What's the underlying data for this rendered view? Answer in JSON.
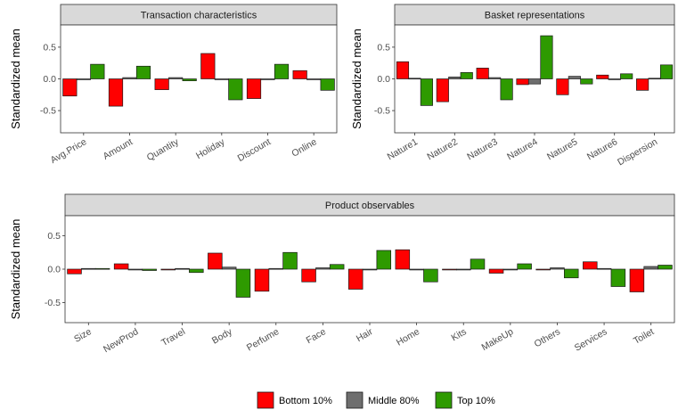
{
  "legend": {
    "items": [
      {
        "label": "Bottom 10%",
        "color": "#ff0000"
      },
      {
        "label": "Middle 80%",
        "color": "#6e6e6e"
      },
      {
        "label": "Top 10%",
        "color": "#2e9a00"
      }
    ]
  },
  "chart_data": [
    {
      "type": "bar",
      "title": "Transaction characteristics",
      "ylabel": "Standardized mean",
      "ylim": [
        -0.85,
        0.85
      ],
      "yticks": [
        -0.5,
        0.0,
        0.5
      ],
      "ytick_labels": [
        "-0.5",
        "0.0",
        "0.5"
      ],
      "categories": [
        "Avg.Price",
        "Amount",
        "Quantity",
        "Holiday",
        "Discount",
        "Online"
      ],
      "series": [
        {
          "name": "Bottom 10%",
          "values": [
            -0.27,
            -0.43,
            -0.17,
            0.4,
            -0.31,
            0.13
          ]
        },
        {
          "name": "Middle 80%",
          "values": [
            0.0,
            0.02,
            0.02,
            0.0,
            0.0,
            0.0
          ]
        },
        {
          "name": "Top 10%",
          "values": [
            0.23,
            0.2,
            -0.03,
            -0.33,
            0.23,
            -0.18
          ]
        }
      ]
    },
    {
      "type": "bar",
      "title": "Basket representations",
      "ylabel": "Standardized mean",
      "ylim": [
        -0.85,
        0.85
      ],
      "yticks": [
        -0.5,
        0.0,
        0.5
      ],
      "ytick_labels": [
        "-0.5",
        "0.0",
        "0.5"
      ],
      "categories": [
        "Nature1",
        "Nature2",
        "Nature3",
        "Nature4",
        "Nature5",
        "Nature6",
        "Dispersion"
      ],
      "series": [
        {
          "name": "Bottom 10%",
          "values": [
            0.27,
            -0.36,
            0.17,
            -0.09,
            -0.25,
            0.06,
            -0.18
          ]
        },
        {
          "name": "Middle 80%",
          "values": [
            0.01,
            0.03,
            0.02,
            -0.08,
            0.04,
            -0.01,
            0.01
          ]
        },
        {
          "name": "Top 10%",
          "values": [
            -0.42,
            0.1,
            -0.33,
            0.68,
            -0.08,
            0.08,
            0.22
          ]
        }
      ]
    },
    {
      "type": "bar",
      "title": "Product observables",
      "ylabel": "Standardized mean",
      "ylim": [
        -0.8,
        0.8
      ],
      "yticks": [
        -0.5,
        0.0,
        0.5
      ],
      "ytick_labels": [
        "-0.5",
        "0.0",
        "0.5"
      ],
      "categories": [
        "Size",
        "NewProd",
        "Travel",
        "Body",
        "Perfume",
        "Face",
        "Hair",
        "Home",
        "Kits",
        "MakeUp",
        "Others",
        "Services",
        "Toilet"
      ],
      "series": [
        {
          "name": "Bottom 10%",
          "values": [
            -0.07,
            0.08,
            0.0,
            0.24,
            -0.33,
            -0.19,
            -0.3,
            0.29,
            0.0,
            -0.06,
            -0.01,
            0.11,
            -0.34
          ]
        },
        {
          "name": "Middle 80%",
          "values": [
            0.01,
            -0.01,
            0.01,
            0.03,
            0.01,
            0.02,
            0.0,
            -0.01,
            0.0,
            0.0,
            0.02,
            0.01,
            0.04
          ]
        },
        {
          "name": "Top 10%",
          "values": [
            0.01,
            -0.02,
            -0.05,
            -0.42,
            0.25,
            0.07,
            0.28,
            -0.19,
            0.15,
            0.08,
            -0.13,
            -0.26,
            0.06
          ]
        }
      ]
    }
  ]
}
